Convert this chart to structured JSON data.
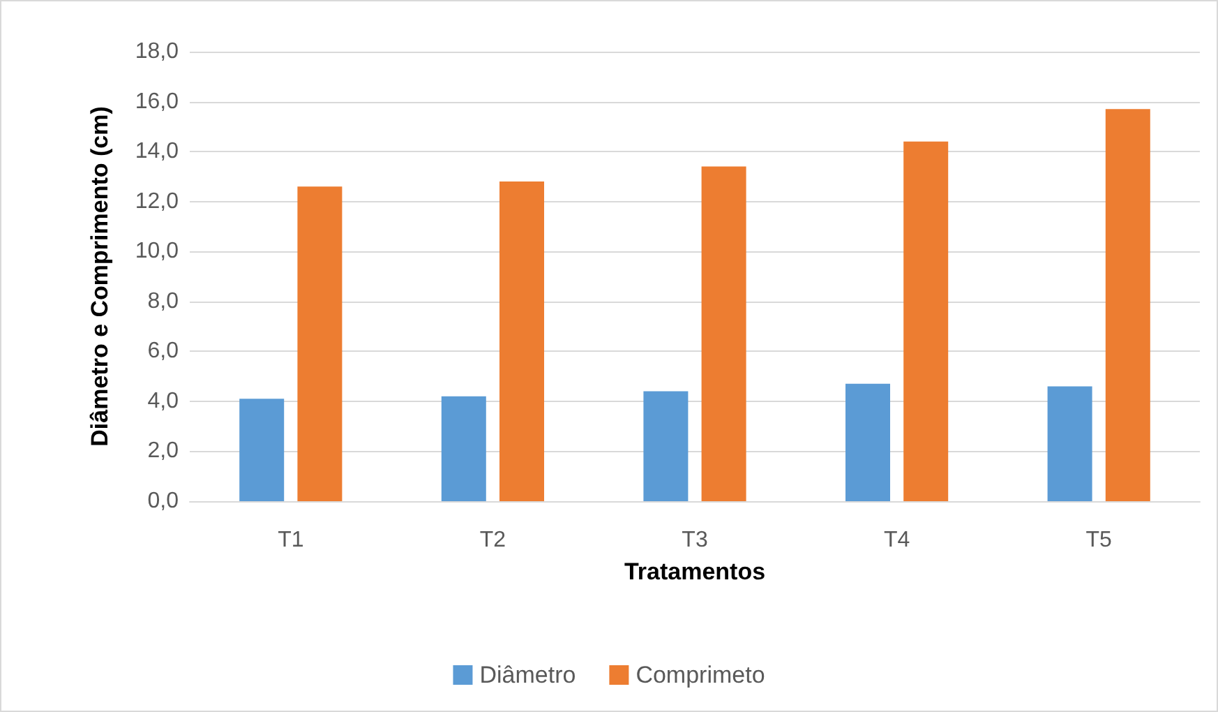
{
  "chart_data": {
    "type": "bar",
    "xlabel": "Tratamentos",
    "ylabel": "Diâmetro e Comprimento (cm)",
    "categories": [
      "T1",
      "T2",
      "T3",
      "T4",
      "T5"
    ],
    "series": [
      {
        "name": "Diâmetro",
        "color": "#5b9bd5",
        "values": [
          4.1,
          4.2,
          4.4,
          4.7,
          4.6
        ]
      },
      {
        "name": "Comprimeto",
        "color": "#ed7d31",
        "values": [
          12.6,
          12.8,
          13.4,
          14.4,
          15.7
        ]
      }
    ],
    "ylim": [
      0,
      18
    ],
    "yticks": [
      {
        "value": 0,
        "label": "0,0"
      },
      {
        "value": 2,
        "label": "2,0"
      },
      {
        "value": 4,
        "label": "4,0"
      },
      {
        "value": 6,
        "label": "6,0"
      },
      {
        "value": 8,
        "label": "8,0"
      },
      {
        "value": 10,
        "label": "10,0"
      },
      {
        "value": 12,
        "label": "12,0"
      },
      {
        "value": 14,
        "label": "14,0"
      },
      {
        "value": 16,
        "label": "16,0"
      },
      {
        "value": 18,
        "label": "18,0"
      }
    ],
    "grid": "y",
    "legend": "bottom"
  }
}
